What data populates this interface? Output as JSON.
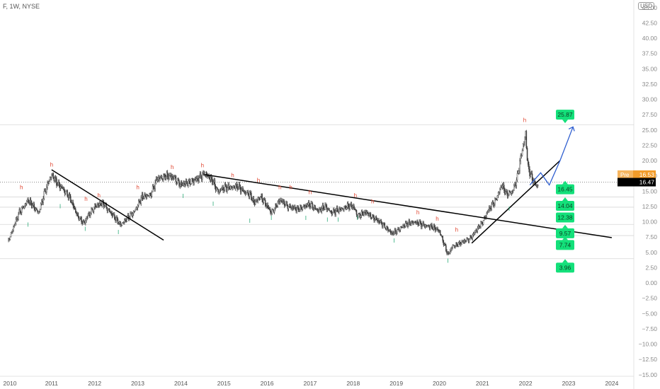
{
  "header": {
    "symbol": "F, 1W, NYSE",
    "currency": "USD"
  },
  "chart_data": {
    "type": "candlestick",
    "title": "F, 1W, NYSE",
    "currency": "USD",
    "ylim": [
      -15,
      45
    ],
    "xlim": [
      2010,
      2024.4
    ],
    "y_ticks": [
      45,
      42.5,
      40,
      37.5,
      35,
      32.5,
      30,
      27.5,
      25,
      22.5,
      20,
      17.5,
      15,
      12.5,
      10,
      7.5,
      5,
      2.5,
      0,
      -2.5,
      -5,
      -7.5,
      -10,
      -12.5,
      -15
    ],
    "y_tick_labels": [
      "45.00",
      "42.50",
      "40.00",
      "37.50",
      "35.00",
      "32.50",
      "30.00",
      "27.50",
      "25.00",
      "22.50",
      "20.00",
      "17.50",
      "15.00",
      "12.50",
      "10.00",
      "7.50",
      "5.00",
      "2.50",
      "0.00",
      "−2.50",
      "−5.00",
      "−7.50",
      "−10.00",
      "−12.50",
      "−15.00"
    ],
    "x_ticks": [
      2010,
      2011,
      2012,
      2013,
      2014,
      2015,
      2016,
      2017,
      2018,
      2019,
      2020,
      2021,
      2022,
      2023,
      2024
    ],
    "x_tick_labels": [
      "2010",
      "2011",
      "2012",
      "2013",
      "2014",
      "2015",
      "2016",
      "2017",
      "2018",
      "2019",
      "2020",
      "2021",
      "2022",
      "2023",
      "2024"
    ],
    "price_path": [
      [
        2010.0,
        7.0
      ],
      [
        2010.25,
        11.5
      ],
      [
        2010.45,
        13.5
      ],
      [
        2010.7,
        11.5
      ],
      [
        2010.85,
        15.0
      ],
      [
        2011.0,
        17.8
      ],
      [
        2011.15,
        16.0
      ],
      [
        2011.25,
        15.5
      ],
      [
        2011.4,
        14.2
      ],
      [
        2011.6,
        11.0
      ],
      [
        2011.75,
        9.7
      ],
      [
        2011.85,
        11.0
      ],
      [
        2012.0,
        12.5
      ],
      [
        2012.2,
        13.0
      ],
      [
        2012.4,
        11.2
      ],
      [
        2012.6,
        9.5
      ],
      [
        2012.75,
        10.5
      ],
      [
        2012.9,
        11.5
      ],
      [
        2013.1,
        14.0
      ],
      [
        2013.3,
        14.5
      ],
      [
        2013.45,
        17.0
      ],
      [
        2013.65,
        17.5
      ],
      [
        2013.85,
        17.2
      ],
      [
        2014.0,
        16.0
      ],
      [
        2014.2,
        16.5
      ],
      [
        2014.4,
        17.0
      ],
      [
        2014.55,
        18.0
      ],
      [
        2014.75,
        16.5
      ],
      [
        2014.85,
        15.0
      ],
      [
        2015.0,
        15.5
      ],
      [
        2015.3,
        15.8
      ],
      [
        2015.45,
        15.0
      ],
      [
        2015.6,
        14.5
      ],
      [
        2015.7,
        13.0
      ],
      [
        2015.85,
        14.2
      ],
      [
        2016.0,
        12.5
      ],
      [
        2016.1,
        11.5
      ],
      [
        2016.3,
        13.5
      ],
      [
        2016.5,
        12.5
      ],
      [
        2016.7,
        12.0
      ],
      [
        2016.85,
        12.5
      ],
      [
        2017.0,
        12.8
      ],
      [
        2017.2,
        11.8
      ],
      [
        2017.35,
        12.5
      ],
      [
        2017.5,
        11.5
      ],
      [
        2017.7,
        12.0
      ],
      [
        2017.85,
        12.5
      ],
      [
        2018.0,
        12.5
      ],
      [
        2018.1,
        11.0
      ],
      [
        2018.3,
        11.5
      ],
      [
        2018.5,
        10.5
      ],
      [
        2018.7,
        9.5
      ],
      [
        2018.9,
        8.0
      ],
      [
        2019.0,
        8.5
      ],
      [
        2019.2,
        9.5
      ],
      [
        2019.4,
        10.0
      ],
      [
        2019.6,
        9.5
      ],
      [
        2019.8,
        9.2
      ],
      [
        2020.0,
        8.5
      ],
      [
        2020.15,
        5.5
      ],
      [
        2020.2,
        4.5
      ],
      [
        2020.3,
        6.0
      ],
      [
        2020.5,
        6.5
      ],
      [
        2020.75,
        7.5
      ],
      [
        2020.9,
        9.0
      ],
      [
        2021.0,
        10.0
      ],
      [
        2021.15,
        12.0
      ],
      [
        2021.3,
        13.5
      ],
      [
        2021.45,
        16.0
      ],
      [
        2021.55,
        14.5
      ],
      [
        2021.7,
        15.0
      ],
      [
        2021.8,
        17.0
      ],
      [
        2021.9,
        21.0
      ],
      [
        2022.0,
        24.5
      ],
      [
        2022.05,
        19.0
      ],
      [
        2022.15,
        17.0
      ],
      [
        2022.25,
        15.8
      ],
      [
        2022.3,
        16.47
      ]
    ],
    "lines": {
      "trendlines": [
        {
          "from": [
            2011.0,
            18.5
          ],
          "to": [
            2013.6,
            7.0
          ]
        },
        {
          "from": [
            2014.55,
            17.7
          ],
          "to": [
            2024.0,
            7.4
          ]
        },
        {
          "from": [
            2020.75,
            6.5
          ],
          "to": [
            2022.8,
            20.0
          ]
        }
      ],
      "projection_path": [
        [
          2022.1,
          16.0
        ],
        [
          2022.35,
          18.0
        ],
        [
          2022.55,
          16.0
        ],
        [
          2022.8,
          20.0
        ],
        [
          2023.1,
          25.5
        ]
      ],
      "horizontal_levels": [
        25.87,
        14.04,
        12.38,
        9.57,
        7.74,
        3.96
      ]
    },
    "swing_labels": [
      {
        "text": "h",
        "x": 2010.3,
        "y": 15.3,
        "kind": "high"
      },
      {
        "text": "l",
        "x": 2010.45,
        "y": 9.2,
        "kind": "low"
      },
      {
        "text": "h",
        "x": 2011.0,
        "y": 19.0,
        "kind": "high"
      },
      {
        "text": "l",
        "x": 2011.2,
        "y": 12.2,
        "kind": "low"
      },
      {
        "text": "l",
        "x": 2011.78,
        "y": 8.5,
        "kind": "low"
      },
      {
        "text": "h",
        "x": 2011.8,
        "y": 13.4,
        "kind": "high"
      },
      {
        "text": "h",
        "x": 2012.1,
        "y": 14.0,
        "kind": "high"
      },
      {
        "text": "l",
        "x": 2012.55,
        "y": 8.0,
        "kind": "low"
      },
      {
        "text": "h",
        "x": 2013.0,
        "y": 15.3,
        "kind": "high"
      },
      {
        "text": "h",
        "x": 2013.8,
        "y": 18.6,
        "kind": "high"
      },
      {
        "text": "l",
        "x": 2014.05,
        "y": 13.9,
        "kind": "low"
      },
      {
        "text": "h",
        "x": 2014.5,
        "y": 18.9,
        "kind": "high"
      },
      {
        "text": "l",
        "x": 2014.75,
        "y": 12.6,
        "kind": "low"
      },
      {
        "text": "h",
        "x": 2015.2,
        "y": 17.3,
        "kind": "high"
      },
      {
        "text": "l",
        "x": 2015.6,
        "y": 9.8,
        "kind": "low"
      },
      {
        "text": "h",
        "x": 2015.8,
        "y": 16.5,
        "kind": "high"
      },
      {
        "text": "l",
        "x": 2016.1,
        "y": 10.3,
        "kind": "low"
      },
      {
        "text": "h",
        "x": 2016.3,
        "y": 15.3,
        "kind": "high"
      },
      {
        "text": "h",
        "x": 2016.55,
        "y": 15.3,
        "kind": "high"
      },
      {
        "text": "l",
        "x": 2016.9,
        "y": 10.3,
        "kind": "low"
      },
      {
        "text": "h",
        "x": 2017.0,
        "y": 14.5,
        "kind": "high"
      },
      {
        "text": "l",
        "x": 2017.4,
        "y": 10.0,
        "kind": "low"
      },
      {
        "text": "l",
        "x": 2017.65,
        "y": 10.0,
        "kind": "low"
      },
      {
        "text": "h",
        "x": 2018.05,
        "y": 14.0,
        "kind": "high"
      },
      {
        "text": "l",
        "x": 2018.1,
        "y": 10.3,
        "kind": "low"
      },
      {
        "text": "h",
        "x": 2018.45,
        "y": 13.0,
        "kind": "high"
      },
      {
        "text": "l",
        "x": 2018.95,
        "y": 6.6,
        "kind": "low"
      },
      {
        "text": "h",
        "x": 2019.5,
        "y": 11.2,
        "kind": "high"
      },
      {
        "text": "h",
        "x": 2019.95,
        "y": 10.2,
        "kind": "high"
      },
      {
        "text": "l",
        "x": 2020.2,
        "y": 3.3,
        "kind": "low"
      },
      {
        "text": "h",
        "x": 2020.4,
        "y": 8.4,
        "kind": "high"
      },
      {
        "text": "l",
        "x": 2021.62,
        "y": 11.8,
        "kind": "low"
      },
      {
        "text": "h",
        "x": 2021.98,
        "y": 26.3,
        "kind": "high"
      }
    ],
    "price_labels": [
      {
        "text": "25.87",
        "y": 27.5,
        "pointer": "down"
      },
      {
        "text": "16.45",
        "y": 15.3,
        "pointer": "up"
      },
      {
        "text": "14.04",
        "y": 12.6,
        "pointer": "up"
      },
      {
        "text": "12.38",
        "y": 10.7,
        "pointer": "none"
      },
      {
        "text": "9.57",
        "y": 8.1,
        "pointer": "up"
      },
      {
        "text": "7.74",
        "y": 6.2,
        "pointer": "up"
      },
      {
        "text": "3.96",
        "y": 2.5,
        "pointer": "up"
      }
    ],
    "axis_badges": [
      {
        "label": "Pre",
        "value": "16.53",
        "y": 17.7,
        "color": "#f39c2a"
      },
      {
        "label": "",
        "value": "16.47",
        "y": 16.47,
        "color": "#000000"
      }
    ],
    "current_price": 16.47
  },
  "colors": {
    "candle": "#3a3a3a",
    "trendline": "#000000",
    "projection": "#2f5fd0",
    "label_box": "#13e07a",
    "high_label": "#e0442f",
    "low_label": "#17a36b",
    "level_line": "#d6d6d6",
    "axis_text": "#8a8a8a"
  }
}
